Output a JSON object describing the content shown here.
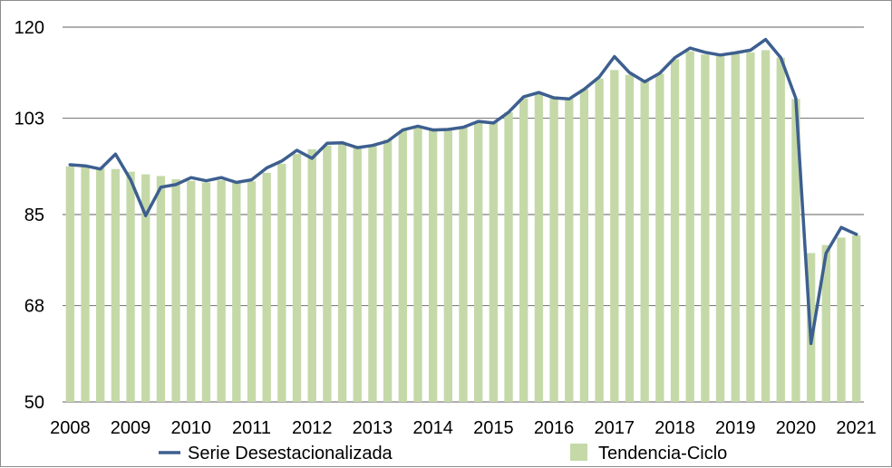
{
  "chart_data": {
    "type": "bar",
    "title": "",
    "xlabel": "",
    "ylabel": "",
    "ylim": [
      50,
      120
    ],
    "y_ticks": [
      "120",
      "103",
      "85",
      "68",
      "50"
    ],
    "y_tick_values": [
      120,
      103,
      85,
      68,
      50
    ],
    "x_tick_labels": [
      "2008",
      "2009",
      "2010",
      "2011",
      "2012",
      "2013",
      "2014",
      "2015",
      "2016",
      "2017",
      "2018",
      "2019",
      "2020",
      "2021"
    ],
    "grid": true,
    "legend_position": "bottom",
    "colors": {
      "bars": "#c5d9a8",
      "line": "#3d5f8f",
      "grid": "#7f7f7f"
    },
    "x": [
      "2008-Q1",
      "2008-Q2",
      "2008-Q3",
      "2008-Q4",
      "2009-Q1",
      "2009-Q2",
      "2009-Q3",
      "2009-Q4",
      "2010-Q1",
      "2010-Q2",
      "2010-Q3",
      "2010-Q4",
      "2011-Q1",
      "2011-Q2",
      "2011-Q3",
      "2011-Q4",
      "2012-Q1",
      "2012-Q2",
      "2012-Q3",
      "2012-Q4",
      "2013-Q1",
      "2013-Q2",
      "2013-Q3",
      "2013-Q4",
      "2014-Q1",
      "2014-Q2",
      "2014-Q3",
      "2014-Q4",
      "2015-Q1",
      "2015-Q2",
      "2015-Q3",
      "2015-Q4",
      "2016-Q1",
      "2016-Q2",
      "2016-Q3",
      "2016-Q4",
      "2017-Q1",
      "2017-Q2",
      "2017-Q3",
      "2017-Q4",
      "2018-Q1",
      "2018-Q2",
      "2018-Q3",
      "2018-Q4",
      "2019-Q1",
      "2019-Q2",
      "2019-Q3",
      "2019-Q4",
      "2020-Q1",
      "2020-Q2",
      "2020-Q3",
      "2020-Q4",
      "2021-Q1"
    ],
    "series": [
      {
        "name": "Serie Desestacionalizada",
        "kind": "line",
        "values": [
          94.3,
          94.1,
          93.5,
          96.3,
          91.5,
          84.8,
          90.1,
          90.6,
          91.9,
          91.3,
          91.9,
          91.0,
          91.5,
          93.7,
          95.0,
          97.0,
          95.5,
          98.3,
          98.4,
          97.5,
          97.9,
          98.7,
          100.8,
          101.5,
          100.8,
          100.9,
          101.3,
          102.4,
          102.1,
          104.1,
          107.0,
          107.8,
          106.8,
          106.6,
          108.4,
          110.7,
          114.5,
          111.5,
          109.8,
          111.4,
          114.3,
          116.1,
          115.3,
          114.8,
          115.2,
          115.7,
          117.7,
          114.3,
          106.7,
          60.9,
          77.8,
          82.6,
          81.3
        ]
      },
      {
        "name": "Tendencia-Ciclo",
        "kind": "bar",
        "values": [
          94.0,
          93.9,
          93.7,
          93.5,
          93.0,
          92.5,
          92.2,
          91.6,
          91.3,
          91.0,
          91.4,
          91.0,
          91.2,
          92.8,
          94.5,
          96.3,
          97.2,
          97.9,
          98.4,
          97.8,
          98.0,
          99.0,
          100.7,
          101.3,
          101.1,
          101.1,
          101.5,
          102.4,
          102.3,
          104.1,
          106.7,
          107.6,
          107.1,
          106.8,
          108.4,
          110.4,
          112.0,
          111.1,
          109.9,
          111.3,
          114.0,
          115.5,
          114.9,
          114.7,
          115.0,
          115.3,
          115.7,
          114.3,
          106.6,
          77.8,
          79.3,
          80.7,
          81.1
        ]
      }
    ]
  }
}
